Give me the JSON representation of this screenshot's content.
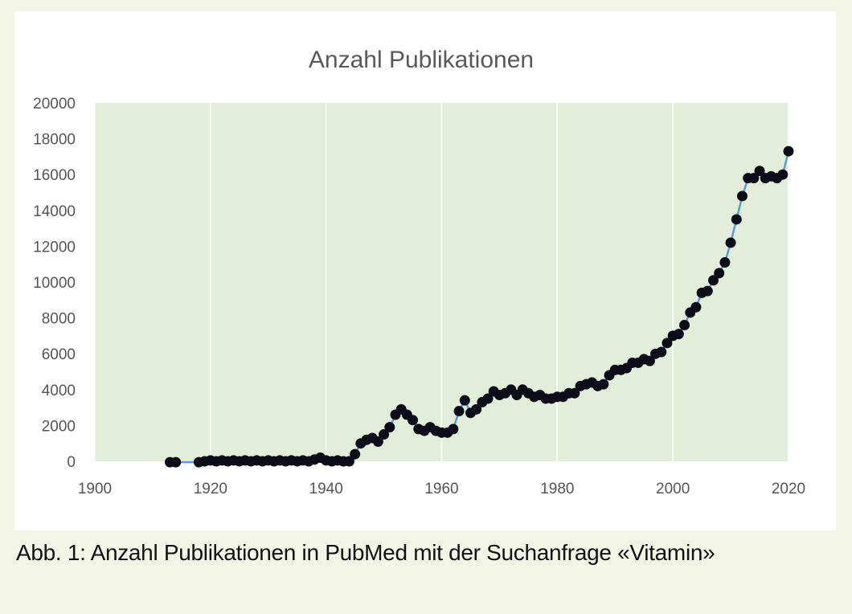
{
  "caption": "Abb. 1: Anzahl Publikationen in PubMed mit der Suchanfrage «Vitamin»",
  "colors": {
    "page_background": "#f3f5e6",
    "plot_background": "#e2eeda",
    "line": "#5b9bd5",
    "marker": "#0d0d1a",
    "grid": "#ffffff"
  },
  "chart_data": {
    "type": "line",
    "title": "Anzahl Publikationen",
    "xlabel": "",
    "ylabel": "",
    "xlim": [
      1900,
      2020
    ],
    "ylim": [
      0,
      20000
    ],
    "x_ticks": [
      1900,
      1920,
      1940,
      1960,
      1980,
      2000,
      2020
    ],
    "y_ticks": [
      0,
      2000,
      4000,
      6000,
      8000,
      10000,
      12000,
      14000,
      16000,
      18000,
      20000
    ],
    "grid": "vertical",
    "legend": "none",
    "markers": true,
    "series": [
      {
        "x": [
          1913,
          1914,
          1918,
          1919,
          1920,
          1921,
          1922,
          1923,
          1924,
          1925,
          1926,
          1927,
          1928,
          1929,
          1930,
          1931,
          1932,
          1933,
          1934,
          1935,
          1936,
          1937,
          1938,
          1939,
          1940,
          1941,
          1942,
          1943,
          1944,
          1945,
          1946,
          1947,
          1948,
          1949,
          1950,
          1951,
          1952,
          1953,
          1954,
          1955,
          1956,
          1957,
          1958,
          1959,
          1960,
          1961,
          1962,
          1963,
          1964,
          1965,
          1966,
          1967,
          1968,
          1969,
          1970,
          1971,
          1972,
          1973,
          1974,
          1975,
          1976,
          1977,
          1978,
          1979,
          1980,
          1981,
          1982,
          1983,
          1984,
          1985,
          1986,
          1987,
          1988,
          1989,
          1990,
          1991,
          1992,
          1993,
          1994,
          1995,
          1996,
          1997,
          1998,
          1999,
          2000,
          2001,
          2002,
          2003,
          2004,
          2005,
          2006,
          2007,
          2008,
          2009,
          2010,
          2011,
          2012,
          2013,
          2014,
          2015,
          2016,
          2017,
          2018,
          2019,
          2020
        ],
        "values": [
          -50,
          -50,
          -50,
          0,
          50,
          0,
          50,
          0,
          50,
          0,
          50,
          0,
          50,
          0,
          50,
          0,
          50,
          0,
          50,
          0,
          50,
          0,
          100,
          200,
          50,
          0,
          50,
          0,
          0,
          400,
          1000,
          1200,
          1300,
          1100,
          1500,
          1900,
          2600,
          2900,
          2600,
          2300,
          1800,
          1700,
          1900,
          1700,
          1600,
          1600,
          1800,
          2800,
          3400,
          2700,
          2900,
          3300,
          3500,
          3900,
          3700,
          3800,
          4000,
          3700,
          4000,
          3800,
          3600,
          3700,
          3500,
          3500,
          3600,
          3600,
          3800,
          3800,
          4200,
          4300,
          4400,
          4200,
          4300,
          4800,
          5100,
          5100,
          5200,
          5500,
          5500,
          5700,
          5600,
          6000,
          6100,
          6600,
          7000,
          7100,
          7600,
          8300,
          8600,
          9400,
          9500,
          10100,
          10500,
          11100,
          12200,
          13500,
          14800,
          15800,
          15800,
          16200,
          15800,
          15900,
          15800,
          16000,
          17300
        ]
      }
    ]
  }
}
